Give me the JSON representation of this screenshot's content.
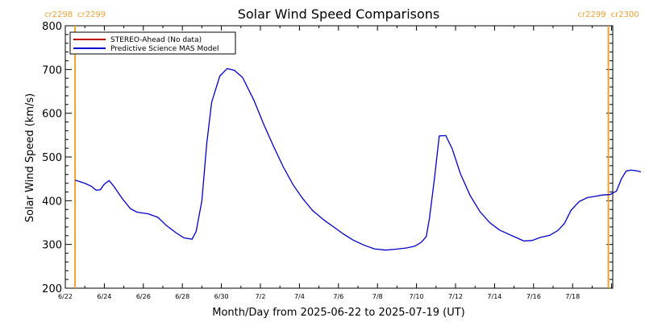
{
  "chart_data": {
    "type": "line",
    "title": "Solar Wind Speed Comparisons",
    "xlabel": "Month/Day from 2025-06-22 to 2025-07-19 (UT)",
    "ylabel": "Solar Wind Speed (km/s)",
    "xlim": [
      "2025-06-22",
      "2025-07-20"
    ],
    "ylim": [
      200,
      800
    ],
    "y_ticks": [
      200,
      300,
      400,
      500,
      600,
      700,
      800
    ],
    "x_ticks": [
      {
        "date": "2025-06-22",
        "label": "6/22"
      },
      {
        "date": "2025-06-24",
        "label": "6/24"
      },
      {
        "date": "2025-06-26",
        "label": "6/26"
      },
      {
        "date": "2025-06-28",
        "label": "6/28"
      },
      {
        "date": "2025-06-30",
        "label": "6/30"
      },
      {
        "date": "2025-07-02",
        "label": "7/2"
      },
      {
        "date": "2025-07-04",
        "label": "7/4"
      },
      {
        "date": "2025-07-06",
        "label": "7/6"
      },
      {
        "date": "2025-07-08",
        "label": "7/8"
      },
      {
        "date": "2025-07-10",
        "label": "7/10"
      },
      {
        "date": "2025-07-12",
        "label": "7/12"
      },
      {
        "date": "2025-07-14",
        "label": "7/14"
      },
      {
        "date": "2025-07-16",
        "label": "7/16"
      },
      {
        "date": "2025-07-18",
        "label": "7/18"
      }
    ],
    "legend_placement": "top-left",
    "grid": false,
    "rotation_markers": [
      {
        "date": "2025-06-22T12:00",
        "labels": [
          "cr2298",
          "cr2299"
        ],
        "color": "#f0a030"
      },
      {
        "date": "2025-07-19T20:00",
        "labels": [
          "cr2299",
          "cr2300"
        ],
        "color": "#f0a030"
      }
    ],
    "series": [
      {
        "name": "STEREO-Ahead (No data)",
        "color": "#c00000",
        "points": []
      },
      {
        "name": "Predictive Science MAS Model",
        "color": "#0000cc",
        "points": [
          [
            "2025-06-22T12:00",
            447
          ],
          [
            "2025-06-23T00:00",
            440
          ],
          [
            "2025-06-23T08:00",
            433
          ],
          [
            "2025-06-23T14:00",
            424
          ],
          [
            "2025-06-23T19:00",
            425
          ],
          [
            "2025-06-24T00:00",
            438
          ],
          [
            "2025-06-24T06:00",
            446
          ],
          [
            "2025-06-24T12:00",
            432
          ],
          [
            "2025-06-24T22:00",
            405
          ],
          [
            "2025-06-25T08:00",
            382
          ],
          [
            "2025-06-25T16:00",
            374
          ],
          [
            "2025-06-26T06:00",
            370
          ],
          [
            "2025-06-26T18:00",
            362
          ],
          [
            "2025-06-27T04:00",
            344
          ],
          [
            "2025-06-27T16:00",
            327
          ],
          [
            "2025-06-28T02:00",
            315
          ],
          [
            "2025-06-28T12:00",
            312
          ],
          [
            "2025-06-28T17:00",
            330
          ],
          [
            "2025-06-29T00:00",
            400
          ],
          [
            "2025-06-29T06:00",
            530
          ],
          [
            "2025-06-29T12:00",
            625
          ],
          [
            "2025-06-29T22:00",
            685
          ],
          [
            "2025-06-30T07:00",
            702
          ],
          [
            "2025-06-30T16:00",
            698
          ],
          [
            "2025-07-01T02:00",
            682
          ],
          [
            "2025-07-01T16:00",
            630
          ],
          [
            "2025-07-02T04:00",
            575
          ],
          [
            "2025-07-02T16:00",
            525
          ],
          [
            "2025-07-03T04:00",
            478
          ],
          [
            "2025-07-03T16:00",
            437
          ],
          [
            "2025-07-04T04:00",
            405
          ],
          [
            "2025-07-04T16:00",
            378
          ],
          [
            "2025-07-05T06:00",
            356
          ],
          [
            "2025-07-05T18:00",
            340
          ],
          [
            "2025-07-06T06:00",
            324
          ],
          [
            "2025-07-06T18:00",
            310
          ],
          [
            "2025-07-07T08:00",
            298
          ],
          [
            "2025-07-07T20:00",
            290
          ],
          [
            "2025-07-08T10:00",
            287
          ],
          [
            "2025-07-08T22:00",
            289
          ],
          [
            "2025-07-09T12:00",
            292
          ],
          [
            "2025-07-09T22:00",
            296
          ],
          [
            "2025-07-10T06:00",
            305
          ],
          [
            "2025-07-10T12:00",
            318
          ],
          [
            "2025-07-10T16:00",
            360
          ],
          [
            "2025-07-10T22:00",
            450
          ],
          [
            "2025-07-11T04:00",
            548
          ],
          [
            "2025-07-11T12:00",
            549
          ],
          [
            "2025-07-11T20:00",
            518
          ],
          [
            "2025-07-12T06:00",
            462
          ],
          [
            "2025-07-12T18:00",
            412
          ],
          [
            "2025-07-13T06:00",
            375
          ],
          [
            "2025-07-13T18:00",
            350
          ],
          [
            "2025-07-14T06:00",
            333
          ],
          [
            "2025-07-14T18:00",
            323
          ],
          [
            "2025-07-15T06:00",
            313
          ],
          [
            "2025-07-15T12:00",
            308
          ],
          [
            "2025-07-15T22:00",
            309
          ],
          [
            "2025-07-16T08:00",
            316
          ],
          [
            "2025-07-16T20:00",
            321
          ],
          [
            "2025-07-17T06:00",
            332
          ],
          [
            "2025-07-17T14:00",
            348
          ],
          [
            "2025-07-17T22:00",
            378
          ],
          [
            "2025-07-18T08:00",
            398
          ],
          [
            "2025-07-18T18:00",
            407
          ],
          [
            "2025-07-19T04:00",
            410
          ],
          [
            "2025-07-19T12:00",
            413
          ],
          [
            "2025-07-19T22:00",
            414
          ],
          [
            "2025-07-20T06:00",
            422
          ],
          [
            "2025-07-20T12:00",
            450
          ],
          [
            "2025-07-20T18:00",
            468
          ],
          [
            "2025-07-21T00:00",
            470
          ],
          [
            "2025-07-21T08:00",
            468
          ],
          [
            "2025-07-21T12:00",
            466
          ]
        ]
      }
    ]
  }
}
